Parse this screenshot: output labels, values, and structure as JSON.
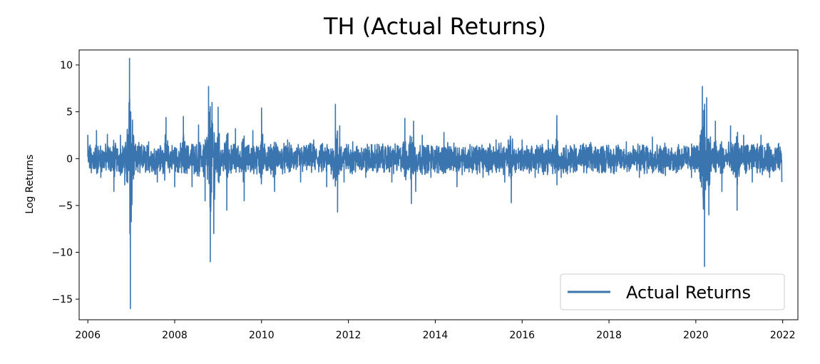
{
  "chart_data": {
    "type": "line",
    "title": "TH (Actual Returns)",
    "xlabel": "",
    "ylabel": "Log Returns",
    "xlim": [
      2005.8,
      2022.35
    ],
    "ylim": [
      -17.2,
      11.6
    ],
    "x_ticks": [
      2006,
      2008,
      2010,
      2012,
      2014,
      2016,
      2018,
      2020,
      2022
    ],
    "x_tick_labels": [
      "2006",
      "2008",
      "2010",
      "2012",
      "2014",
      "2016",
      "2018",
      "2020",
      "2022"
    ],
    "y_ticks": [
      10,
      5,
      0,
      -5,
      -10,
      -15
    ],
    "y_tick_labels": [
      "10",
      "5",
      "0",
      "−5",
      "−10",
      "−15"
    ],
    "grid": false,
    "legend_position": "lower-right",
    "color": "#3a75b0",
    "series": [
      {
        "name": "Actual Returns",
        "points_x": [
          2006.0,
          2006.08,
          2006.2,
          2006.3,
          2006.45,
          2006.6,
          2006.75,
          2006.85,
          2006.93,
          2006.96,
          2006.98,
          2007.05,
          2007.2,
          2007.4,
          2007.6,
          2007.8,
          2008.0,
          2008.2,
          2008.4,
          2008.55,
          2008.7,
          2008.78,
          2008.82,
          2008.86,
          2008.9,
          2009.0,
          2009.2,
          2009.4,
          2009.6,
          2009.8,
          2010.0,
          2010.3,
          2010.6,
          2010.9,
          2011.2,
          2011.5,
          2011.7,
          2011.75,
          2011.8,
          2011.9,
          2012.1,
          2012.4,
          2012.7,
          2013.0,
          2013.3,
          2013.45,
          2013.5,
          2013.55,
          2013.7,
          2013.9,
          2014.2,
          2014.5,
          2014.8,
          2015.1,
          2015.4,
          2015.6,
          2015.68,
          2015.75,
          2016.0,
          2016.3,
          2016.6,
          2016.8,
          2016.9,
          2017.2,
          2017.5,
          2017.8,
          2018.1,
          2018.4,
          2018.7,
          2019.0,
          2019.3,
          2019.6,
          2019.9,
          2020.1,
          2020.15,
          2020.2,
          2020.25,
          2020.3,
          2020.45,
          2020.6,
          2020.8,
          2020.95,
          2021.1,
          2021.3,
          2021.5,
          2021.7,
          2021.9,
          2021.98
        ],
        "points_y": [
          2.5,
          -1.5,
          3.0,
          -2.0,
          2.6,
          -3.5,
          2.5,
          -2.8,
          1.5,
          10.7,
          -16.0,
          2.5,
          -1.5,
          1.8,
          -2.5,
          4.4,
          -3.0,
          4.5,
          -3.0,
          3.6,
          -4.5,
          7.7,
          -11.0,
          6.0,
          -8.0,
          5.5,
          -5.5,
          3.2,
          -4.5,
          3.0,
          5.4,
          -3.5,
          2.0,
          -2.5,
          2.0,
          -3.0,
          5.8,
          -5.7,
          3.5,
          -2.5,
          1.8,
          -2.0,
          1.5,
          -2.5,
          4.3,
          -4.8,
          4.0,
          -3.5,
          2.5,
          -2.0,
          2.8,
          -3.0,
          1.5,
          -2.0,
          2.0,
          -2.5,
          2.0,
          -4.7,
          2.0,
          -2.0,
          2.0,
          4.6,
          -2.0,
          1.5,
          -1.0,
          1.0,
          -1.5,
          1.8,
          -2.0,
          2.3,
          -1.8,
          1.5,
          -2.0,
          2.5,
          7.7,
          -11.5,
          6.5,
          -6.0,
          4.0,
          -3.5,
          3.5,
          -5.5,
          2.5,
          -2.5,
          2.5,
          -2.0,
          1.5,
          -2.5
        ]
      }
    ]
  }
}
